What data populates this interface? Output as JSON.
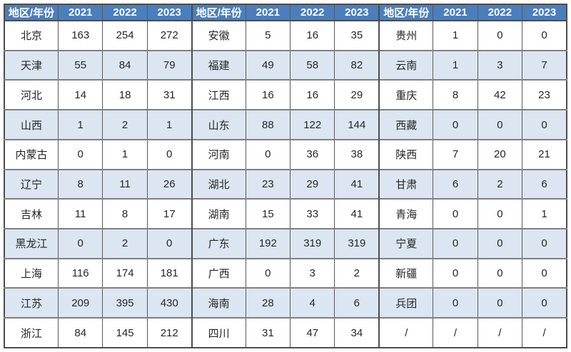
{
  "colors": {
    "header_bg": "#4A7EBD",
    "header_text": "#FFFFFF",
    "row_bg": "#FFFFFF",
    "row_alt_bg": "#DCE6F2",
    "text": "#262626",
    "border_outer": "#4D4D4D",
    "border_h": "#7F7F7F",
    "border_v": "#595959"
  },
  "table": {
    "groups": [
      {
        "header": {
          "region": "地区/年份",
          "years": [
            "2021",
            "2022",
            "2023"
          ]
        },
        "rows": [
          {
            "region": "北京",
            "values": [
              "163",
              "254",
              "272"
            ]
          },
          {
            "region": "天津",
            "values": [
              "55",
              "84",
              "79"
            ]
          },
          {
            "region": "河北",
            "values": [
              "14",
              "18",
              "31"
            ]
          },
          {
            "region": "山西",
            "values": [
              "1",
              "2",
              "1"
            ]
          },
          {
            "region": "内蒙古",
            "values": [
              "0",
              "1",
              "0"
            ]
          },
          {
            "region": "辽宁",
            "values": [
              "8",
              "11",
              "26"
            ]
          },
          {
            "region": "吉林",
            "values": [
              "11",
              "8",
              "17"
            ]
          },
          {
            "region": "黑龙江",
            "values": [
              "0",
              "2",
              "0"
            ]
          },
          {
            "region": "上海",
            "values": [
              "116",
              "174",
              "181"
            ]
          },
          {
            "region": "江苏",
            "values": [
              "209",
              "395",
              "430"
            ]
          },
          {
            "region": "浙江",
            "values": [
              "84",
              "145",
              "212"
            ]
          }
        ]
      },
      {
        "header": {
          "region": "地区/年份",
          "years": [
            "2021",
            "2022",
            "2023"
          ]
        },
        "rows": [
          {
            "region": "安徽",
            "values": [
              "5",
              "16",
              "35"
            ]
          },
          {
            "region": "福建",
            "values": [
              "49",
              "58",
              "82"
            ]
          },
          {
            "region": "江西",
            "values": [
              "16",
              "16",
              "29"
            ]
          },
          {
            "region": "山东",
            "values": [
              "88",
              "122",
              "144"
            ]
          },
          {
            "region": "河南",
            "values": [
              "0",
              "36",
              "38"
            ]
          },
          {
            "region": "湖北",
            "values": [
              "23",
              "29",
              "41"
            ]
          },
          {
            "region": "湖南",
            "values": [
              "15",
              "33",
              "41"
            ]
          },
          {
            "region": "广东",
            "values": [
              "192",
              "319",
              "319"
            ]
          },
          {
            "region": "广西",
            "values": [
              "0",
              "3",
              "2"
            ]
          },
          {
            "region": "海南",
            "values": [
              "28",
              "4",
              "6"
            ]
          },
          {
            "region": "四川",
            "values": [
              "31",
              "47",
              "34"
            ]
          }
        ]
      },
      {
        "header": {
          "region": "地区/年份",
          "years": [
            "2021",
            "2022",
            "2023"
          ]
        },
        "rows": [
          {
            "region": "贵州",
            "values": [
              "1",
              "0",
              "0"
            ]
          },
          {
            "region": "云南",
            "values": [
              "1",
              "3",
              "7"
            ]
          },
          {
            "region": "重庆",
            "values": [
              "8",
              "42",
              "23"
            ]
          },
          {
            "region": "西藏",
            "values": [
              "0",
              "0",
              "0"
            ]
          },
          {
            "region": "陕西",
            "values": [
              "7",
              "20",
              "21"
            ]
          },
          {
            "region": "甘肃",
            "values": [
              "6",
              "2",
              "6"
            ]
          },
          {
            "region": "青海",
            "values": [
              "0",
              "0",
              "1"
            ]
          },
          {
            "region": "宁夏",
            "values": [
              "0",
              "0",
              "0"
            ]
          },
          {
            "region": "新疆",
            "values": [
              "0",
              "0",
              "0"
            ]
          },
          {
            "region": "兵团",
            "values": [
              "0",
              "0",
              "0"
            ]
          },
          {
            "region": "/",
            "values": [
              "/",
              "/",
              "/"
            ]
          }
        ]
      }
    ]
  }
}
